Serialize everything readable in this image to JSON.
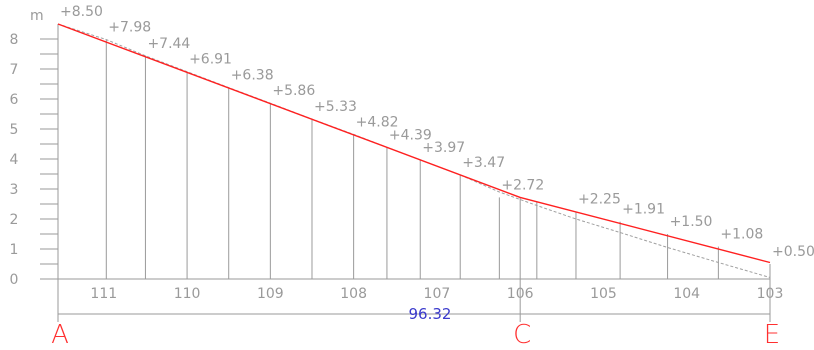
{
  "unit_label": "m",
  "y_ticks": [
    "0",
    "1",
    "2",
    "3",
    "4",
    "5",
    "6",
    "7",
    "8"
  ],
  "chart_data": {
    "type": "line",
    "x_range": [
      111.55,
      103.0
    ],
    "ylim": [
      0,
      9
    ],
    "verticals": [
      {
        "x": 111.55,
        "label": "+8.50",
        "elev": 8.5
      },
      {
        "x": 110.97,
        "label": "+7.98",
        "elev": 7.98
      },
      {
        "x": 110.5,
        "label": "+7.44",
        "elev": 7.44
      },
      {
        "x": 110.0,
        "label": "+6.91",
        "elev": 6.91
      },
      {
        "x": 109.5,
        "label": "+6.38",
        "elev": 6.38
      },
      {
        "x": 109.0,
        "label": "+5.86",
        "elev": 5.86
      },
      {
        "x": 108.5,
        "label": "+5.33",
        "elev": 5.33
      },
      {
        "x": 108.0,
        "label": "+4.82",
        "elev": 4.82
      },
      {
        "x": 107.6,
        "label": "+4.39",
        "elev": 4.39
      },
      {
        "x": 107.2,
        "label": "+3.97",
        "elev": 3.97
      },
      {
        "x": 106.72,
        "label": "+3.47",
        "elev": 3.47
      },
      {
        "x": 106.25,
        "label": "+2.72",
        "elev": 2.72
      },
      {
        "x": 106.0,
        "label": "",
        "elev": null
      },
      {
        "x": 105.8,
        "label": "",
        "elev": null
      },
      {
        "x": 105.33,
        "label": "+2.25",
        "elev": 2.25
      },
      {
        "x": 104.8,
        "label": "+1.91",
        "elev": 1.91
      },
      {
        "x": 104.23,
        "label": "+1.50",
        "elev": 1.5
      },
      {
        "x": 103.62,
        "label": "+1.08",
        "elev": 1.08
      },
      {
        "x": 103.0,
        "label": "+0.50",
        "elev": 0.5
      }
    ],
    "station_ticks": [
      "111",
      "110",
      "109",
      "108",
      "107",
      "106",
      "105",
      "104",
      "103"
    ],
    "station_tick_values": [
      111,
      110,
      109,
      108,
      107,
      106,
      105,
      104,
      103
    ],
    "design_line": [
      {
        "x": 111.55,
        "y": 8.5
      },
      {
        "x": 106.0,
        "y": 2.72
      },
      {
        "x": 103.0,
        "y": 0.55
      }
    ],
    "ground_line": [
      {
        "x": 111.55,
        "y": 8.5
      },
      {
        "x": 110.97,
        "y": 7.98
      },
      {
        "x": 110.5,
        "y": 7.44
      },
      {
        "x": 110.0,
        "y": 6.91
      },
      {
        "x": 109.5,
        "y": 6.38
      },
      {
        "x": 109.0,
        "y": 5.86
      },
      {
        "x": 108.5,
        "y": 5.33
      },
      {
        "x": 108.0,
        "y": 4.82
      },
      {
        "x": 107.6,
        "y": 4.39
      },
      {
        "x": 107.2,
        "y": 3.97
      },
      {
        "x": 106.72,
        "y": 3.47
      },
      {
        "x": 106.25,
        "y": 2.9
      },
      {
        "x": 105.8,
        "y": 2.45
      },
      {
        "x": 105.33,
        "y": 2.0
      },
      {
        "x": 104.8,
        "y": 1.55
      },
      {
        "x": 104.23,
        "y": 1.05
      },
      {
        "x": 103.62,
        "y": 0.55
      },
      {
        "x": 103.0,
        "y": 0.05
      }
    ],
    "total_distance_label": "96.32",
    "points": [
      {
        "label": "A",
        "x": 111.55
      },
      {
        "label": "C",
        "x": 106.0
      },
      {
        "label": "E",
        "x": 103.0
      }
    ]
  },
  "colors": {
    "grid": "#9a9a9a",
    "design": "#ff2020",
    "ground": "#a0a0a0",
    "distance": "#3a3acc",
    "points": "#ff3030"
  }
}
